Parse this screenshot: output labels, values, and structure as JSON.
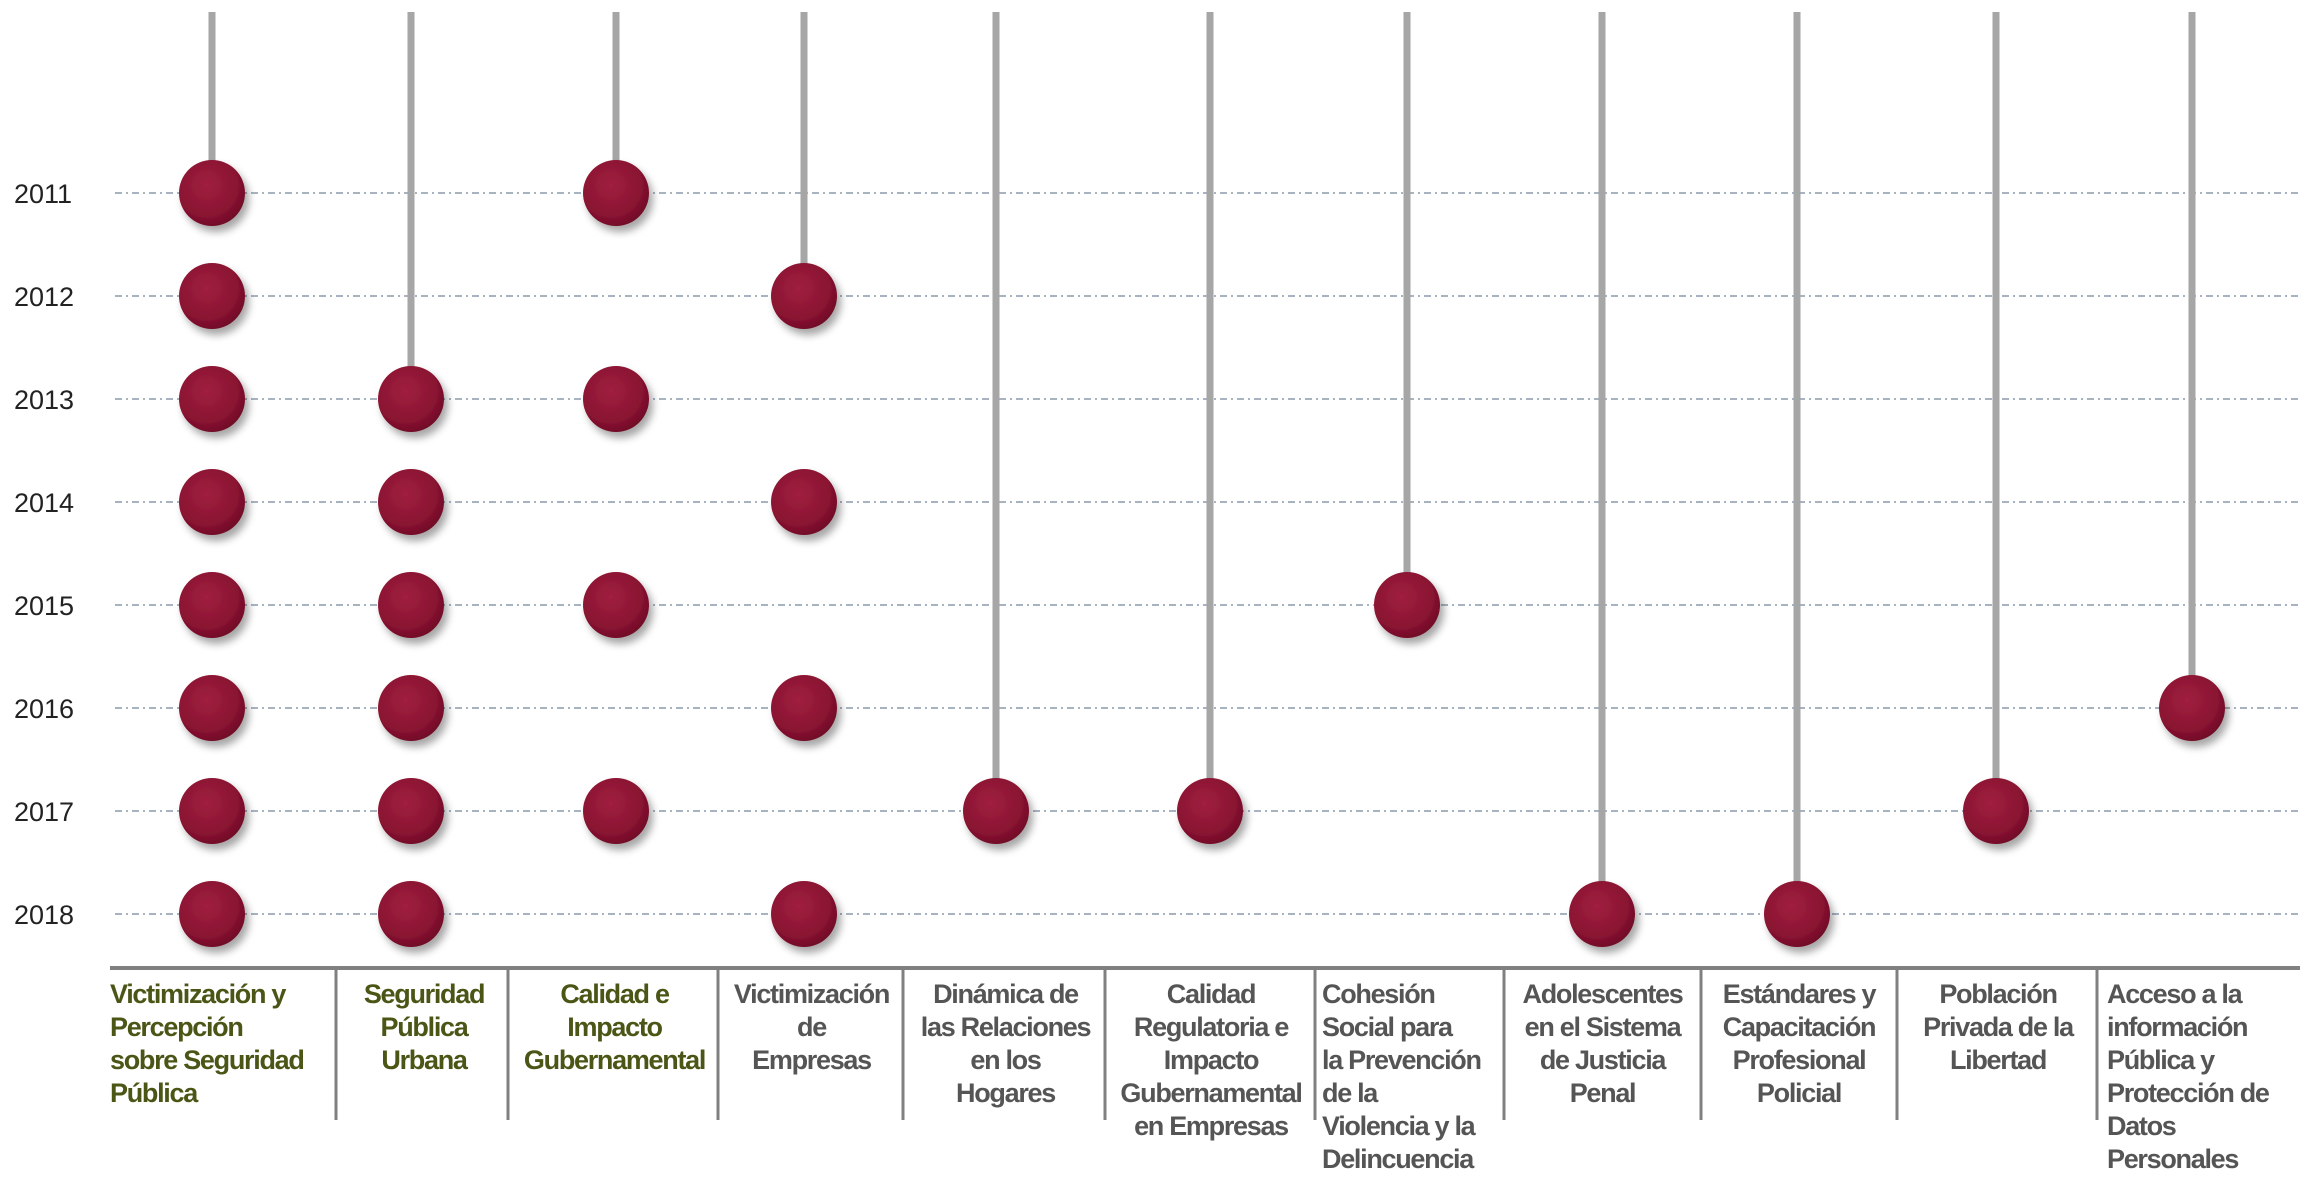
{
  "chart_data": {
    "type": "scatter",
    "title": "",
    "xlabel": "",
    "ylabel": "",
    "years": [
      2011,
      2012,
      2013,
      2014,
      2015,
      2016,
      2017,
      2018
    ],
    "series": [
      {
        "name": "Victimización y\nPercepción\nsobre Seguridad\nPública",
        "align": "left",
        "color_group": "green",
        "points": [
          2011,
          2012,
          2013,
          2014,
          2015,
          2016,
          2017,
          2018
        ],
        "stem_from": 2011
      },
      {
        "name": "Seguridad\nPública\nUrbana",
        "align": "center",
        "color_group": "green",
        "points": [
          2013,
          2014,
          2015,
          2016,
          2017,
          2018
        ],
        "stem_from": 2013
      },
      {
        "name": "Calidad e\nImpacto\nGubernamental",
        "align": "center",
        "color_group": "green",
        "points": [
          2011,
          2013,
          2015,
          2017
        ],
        "stem_from": 2011
      },
      {
        "name": "Victimización\nde\nEmpresas",
        "align": "center",
        "color_group": "gray",
        "points": [
          2012,
          2014,
          2016,
          2018
        ],
        "stem_from": 2012
      },
      {
        "name": "Dinámica de\nlas Relaciones\nen los\nHogares",
        "align": "center",
        "color_group": "gray",
        "points": [
          2017
        ],
        "stem_from": 2017
      },
      {
        "name": "Calidad\nRegulatoria e\nImpacto\nGubernamental\nen Empresas",
        "align": "center",
        "color_group": "gray",
        "points": [
          2017
        ],
        "stem_from": 2017
      },
      {
        "name": "Cohesión\nSocial para\nla Prevención\nde la\nViolencia y la\nDelincuencia",
        "align": "left",
        "color_group": "gray",
        "points": [
          2015
        ],
        "stem_from": 2015
      },
      {
        "name": "Adolescentes\nen el Sistema\nde Justicia\nPenal",
        "align": "center",
        "color_group": "gray",
        "points": [
          2018
        ],
        "stem_from": 2018
      },
      {
        "name": "Estándares y\nCapacitación\nProfesional\nPolicial",
        "align": "center",
        "color_group": "gray",
        "points": [
          2018
        ],
        "stem_from": 2018
      },
      {
        "name": "Población\nPrivada de la\nLibertad",
        "align": "center",
        "color_group": "gray",
        "points": [
          2017
        ],
        "stem_from": 2017
      },
      {
        "name": "Acceso a la\ninformación\nPública y\nProtección de\nDatos\nPersonales",
        "align": "left",
        "color_group": "gray",
        "points": [
          2016
        ],
        "stem_from": 2016
      }
    ],
    "grid": "horizontal dashed lines at each year",
    "legend": "none"
  },
  "colors": {
    "marker": "#8a1332",
    "stem": "#a6a6a6",
    "gridline": "#8c9aae",
    "axis": "#808080",
    "label_green": "#4a5516",
    "label_gray": "#555555"
  }
}
